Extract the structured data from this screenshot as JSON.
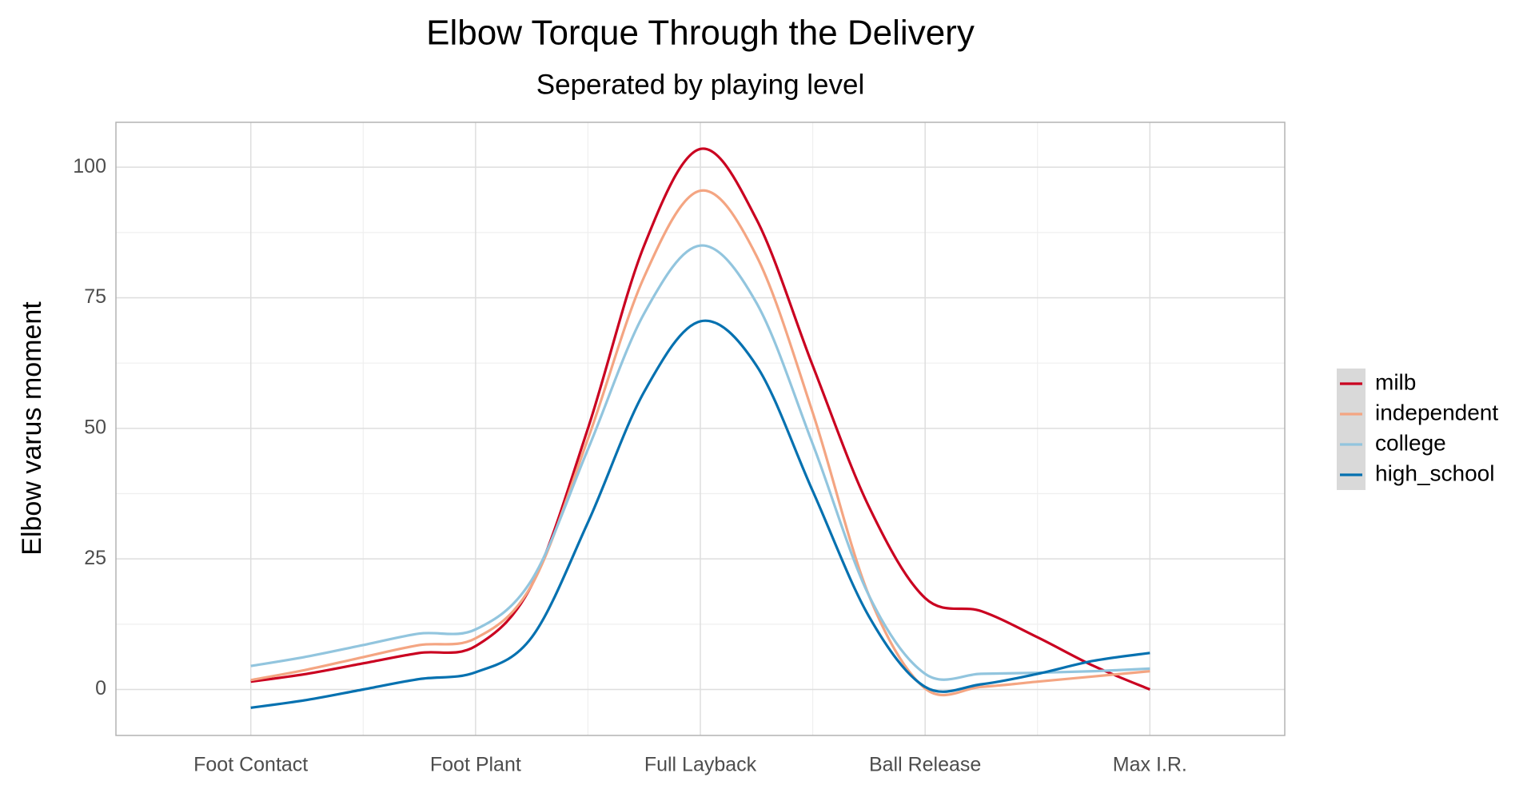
{
  "chart_data": {
    "type": "line",
    "title": "Elbow Torque Through the Delivery",
    "subtitle": "Seperated by playing level",
    "y_label": "Elbow varus moment",
    "x": [
      1,
      1.25,
      1.5,
      1.75,
      2,
      2.25,
      2.5,
      2.75,
      3,
      3.25,
      3.5,
      3.75,
      4,
      4.25,
      4.5,
      4.75,
      5
    ],
    "series": [
      {
        "name": "milb",
        "color": "#ca0020",
        "values": [
          1.5,
          3,
          5,
          7,
          8.3,
          20,
          50,
          85,
          103.5,
          90,
          62,
          35,
          17.5,
          15,
          10,
          4.5,
          0
        ]
      },
      {
        "name": "independent",
        "color": "#f4a582",
        "values": [
          1.8,
          3.8,
          6.2,
          8.5,
          9.8,
          20,
          48,
          79,
          95.5,
          83,
          53,
          18,
          0.2,
          0.5,
          1.5,
          2.5,
          3.5
        ]
      },
      {
        "name": "college",
        "color": "#92c5de",
        "values": [
          4.5,
          6.3,
          8.5,
          10.7,
          11.5,
          21,
          46,
          72,
          85,
          74,
          47,
          18,
          3,
          3,
          3.2,
          3.5,
          4
        ]
      },
      {
        "name": "high_school",
        "color": "#0571b0",
        "values": [
          -3.5,
          -2,
          0,
          2,
          3.3,
          10,
          32,
          57,
          70.5,
          62,
          38,
          14,
          0.5,
          1,
          3,
          5.5,
          7
        ]
      }
    ],
    "xlim": [
      0.4,
      5.6
    ],
    "xticks": [
      {
        "value": 1,
        "label": "Foot Contact"
      },
      {
        "value": 2,
        "label": "Foot Plant"
      },
      {
        "value": 3,
        "label": "Full Layback"
      },
      {
        "value": 4,
        "label": "Ball Release"
      },
      {
        "value": 5,
        "label": "Max I.R."
      }
    ],
    "minor_xticks": [
      1.5,
      2.5,
      3.5,
      4.5
    ],
    "ylim": [
      -8.8,
      108.6
    ],
    "yticks": [
      0,
      25,
      50,
      75,
      100
    ],
    "minor_yticks": [
      12.5,
      37.5,
      62.5,
      87.5
    ],
    "grid": true,
    "legend": "right"
  }
}
